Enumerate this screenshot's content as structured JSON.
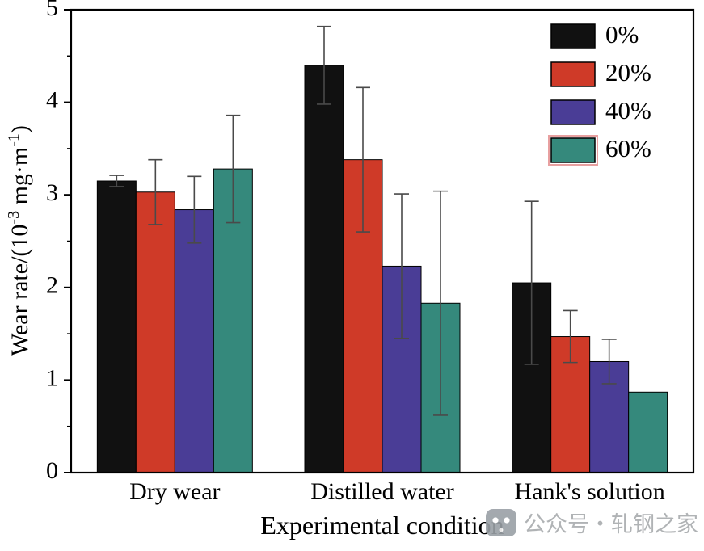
{
  "figure": {
    "watermark": {
      "text": "公众号・轧钢之家",
      "color": "#a8abae",
      "icon": "ghost-logo",
      "icon_color": "#9aa0a6"
    }
  },
  "chart_data": {
    "type": "bar",
    "title": "",
    "xlabel": "Experimental condition",
    "ylabel": "Wear rate/(10⁻³ mg·m⁻¹)",
    "ylabel_parts": [
      {
        "t": "Wear rate/(10"
      },
      {
        "t": "-3",
        "sup": true
      },
      {
        "t": " mg·m"
      },
      {
        "t": "-1",
        "sup": true
      },
      {
        "t": ")"
      }
    ],
    "categories": [
      "Dry wear",
      "Distilled water",
      "Hank's solution"
    ],
    "ylim": [
      0,
      5
    ],
    "yticks": [
      0,
      1,
      2,
      3,
      4,
      5
    ],
    "minor_tick_step": 0.5,
    "grid": false,
    "legend_position": "top-right",
    "error_bar_color": "#4a4a4a",
    "legend_highlight_series": "60%",
    "legend_highlight_color": "#e8a0a0",
    "series": [
      {
        "name": "0%",
        "color": "#111111",
        "values": [
          3.15,
          4.4,
          2.05
        ],
        "errors": [
          0.06,
          0.42,
          0.88
        ]
      },
      {
        "name": "20%",
        "color": "#cf3a28",
        "values": [
          3.03,
          3.38,
          1.47
        ],
        "errors": [
          0.35,
          0.78,
          0.28
        ]
      },
      {
        "name": "40%",
        "color": "#4a3d96",
        "values": [
          2.84,
          2.23,
          1.2
        ],
        "errors": [
          0.36,
          0.78,
          0.24
        ]
      },
      {
        "name": "60%",
        "color": "#35897c",
        "values": [
          3.28,
          1.83,
          0.87
        ],
        "errors": [
          0.58,
          1.21,
          0
        ]
      }
    ]
  }
}
